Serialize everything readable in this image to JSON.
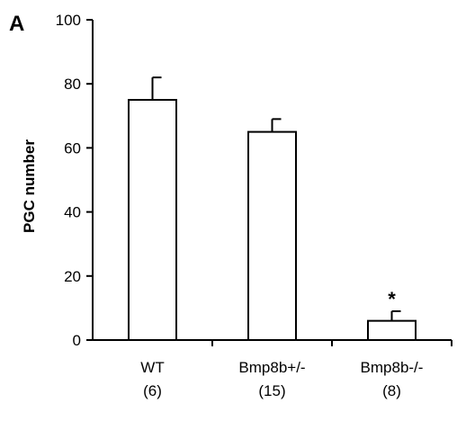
{
  "panel_label": "A",
  "chart_data": {
    "type": "bar",
    "title": "",
    "xlabel": "",
    "ylabel": "PGC number",
    "ylim": [
      0,
      100
    ],
    "yticks": [
      0,
      20,
      40,
      60,
      80,
      100
    ],
    "grid": false,
    "categories": [
      {
        "name": "WT",
        "n": "(6)"
      },
      {
        "name": "Bmp8b+/-",
        "n": "(15)"
      },
      {
        "name": "Bmp8b-/-",
        "n": "(8)"
      }
    ],
    "values": [
      75,
      65,
      6
    ],
    "error_plus": [
      7,
      4,
      3
    ],
    "annotations": [
      {
        "category_index": 2,
        "text": "*"
      }
    ],
    "colors": {
      "bar_fill": "#ffffff",
      "bar_stroke": "#000000",
      "axis": "#000000"
    }
  }
}
